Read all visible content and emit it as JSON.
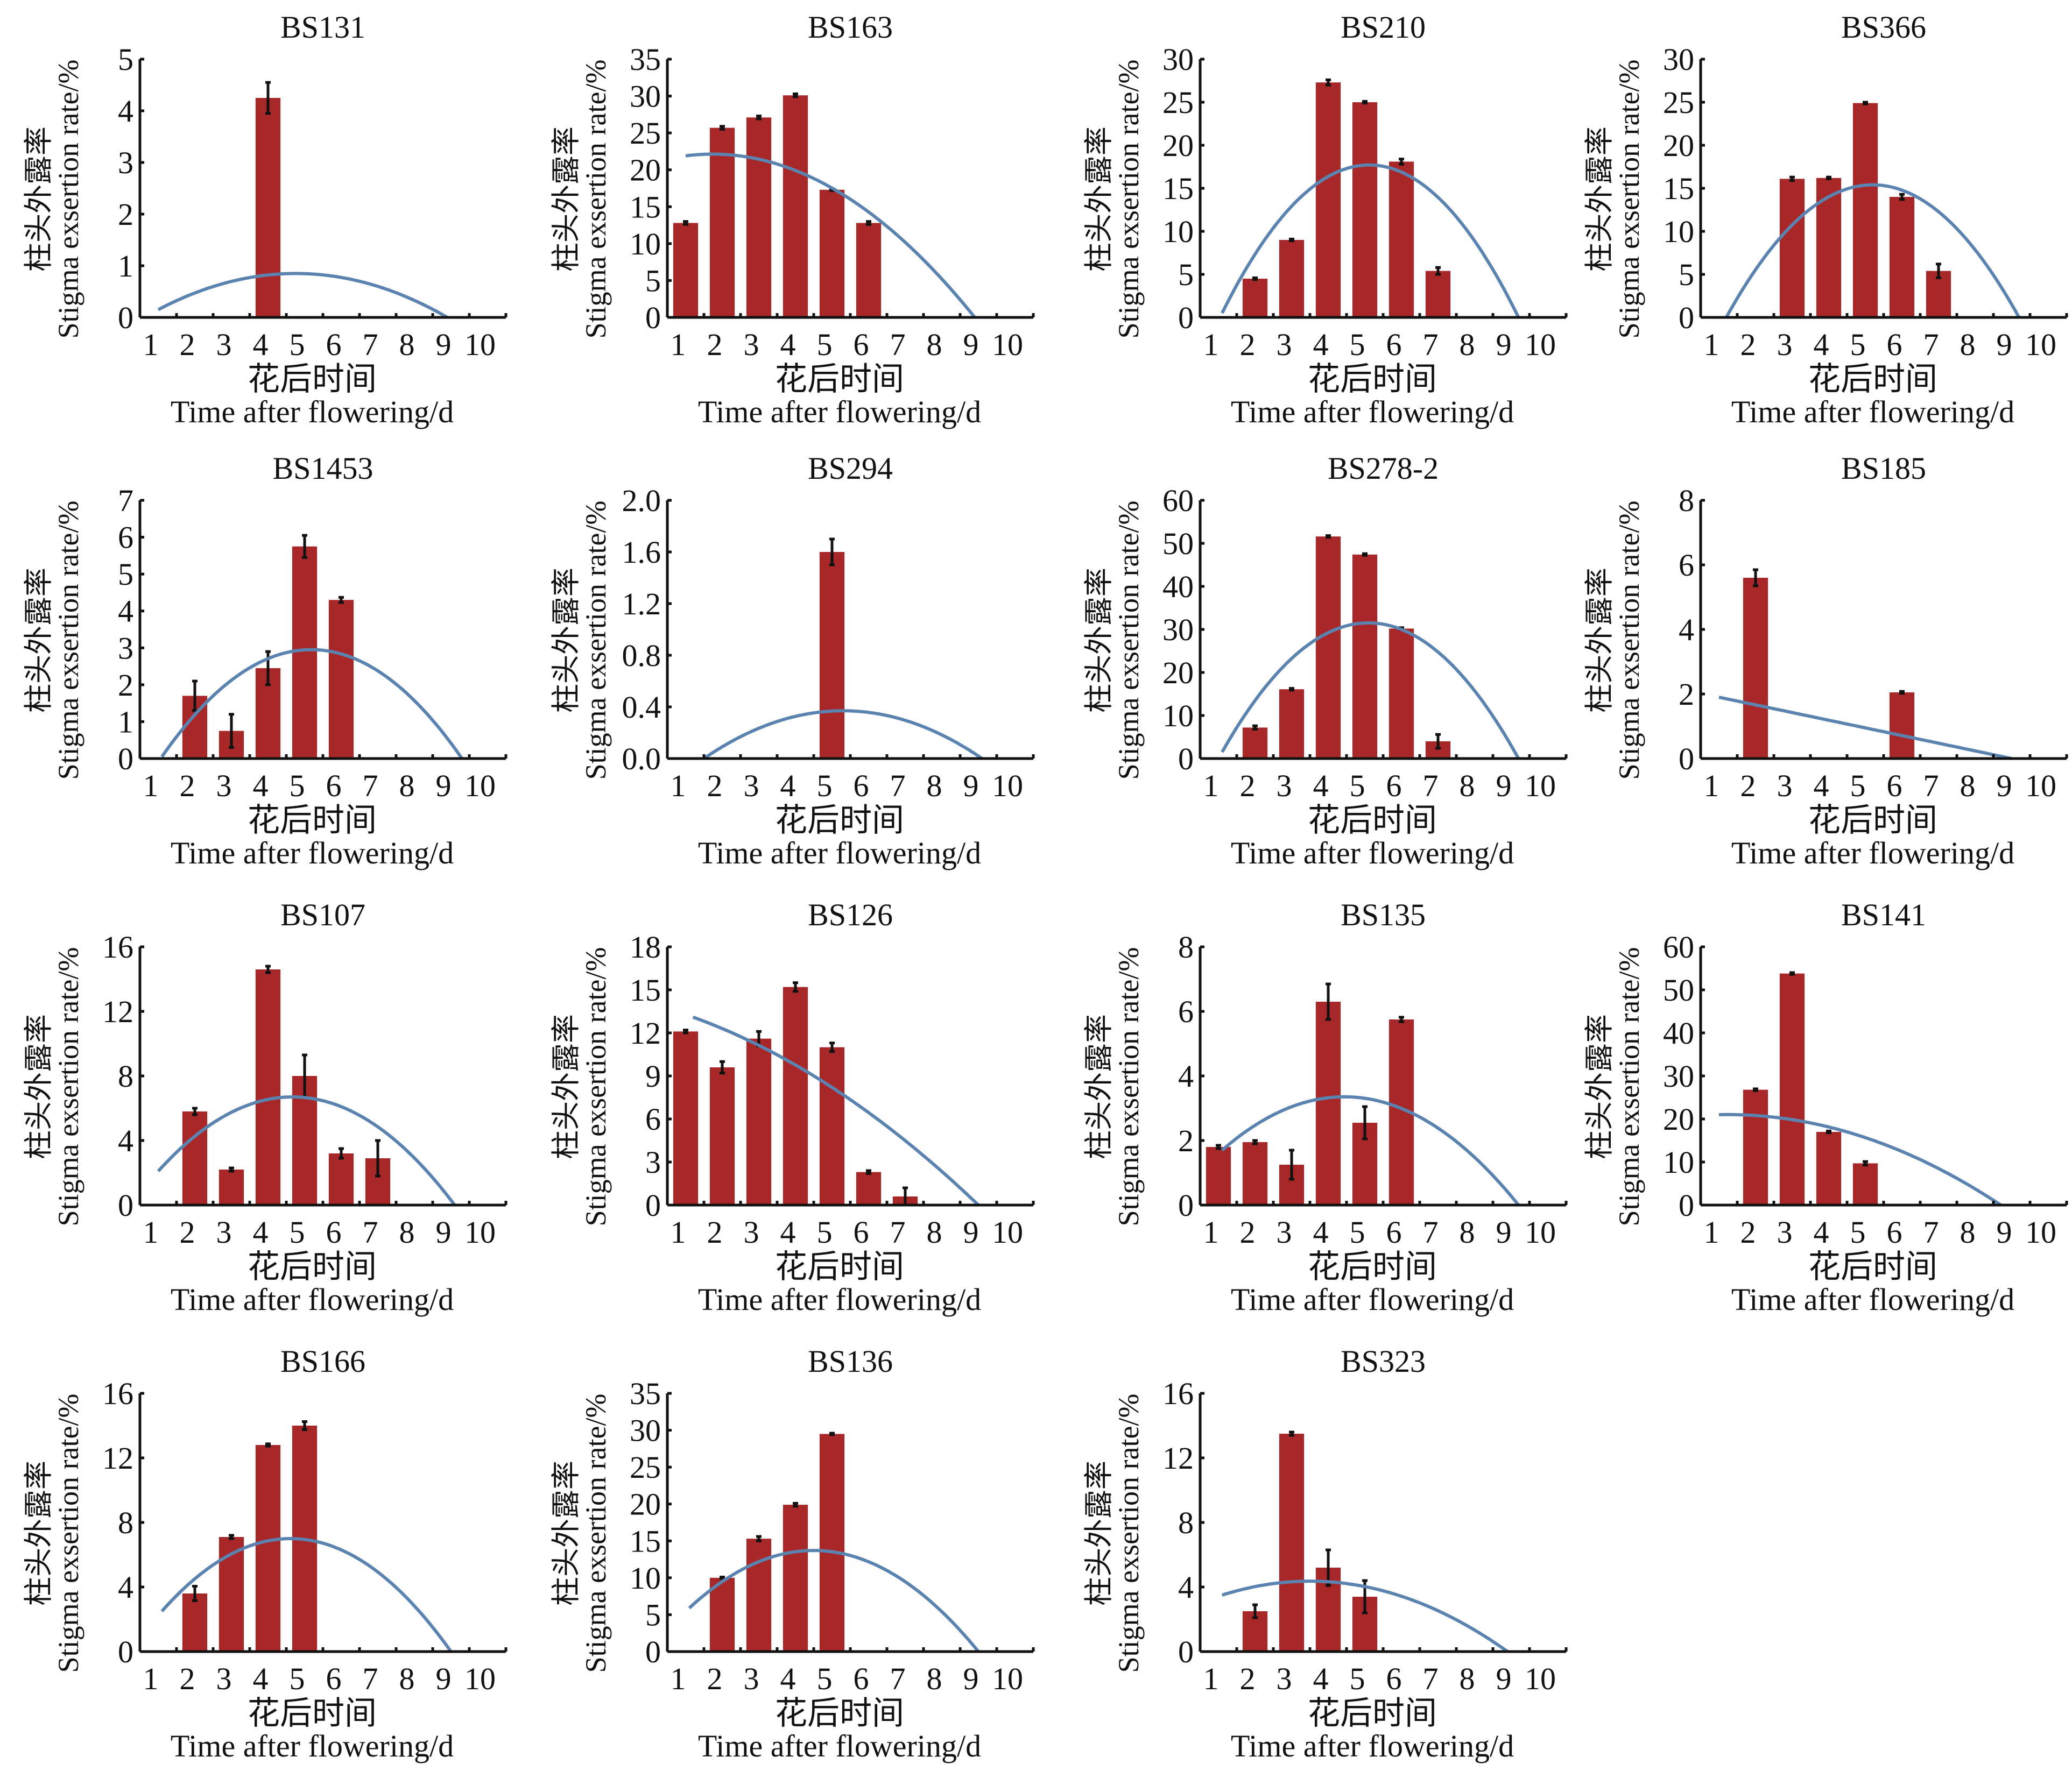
{
  "colors": {
    "bar": "#a8282a",
    "curve": "#5b83b0",
    "axis": "#111111",
    "error": "#111111"
  },
  "chart_data": [
    {
      "type": "bar",
      "title": "BS131",
      "ylim": [
        0,
        5
      ],
      "yticks": [
        "0",
        "1",
        "2",
        "3",
        "4",
        "5"
      ],
      "yvals": [
        0,
        1,
        2,
        3,
        4,
        5
      ],
      "categories": [
        "1",
        "2",
        "3",
        "4",
        "5",
        "6",
        "7",
        "8",
        "9",
        "10"
      ],
      "values": [
        0,
        0,
        0,
        4.25,
        0,
        0,
        0,
        0,
        0,
        0
      ],
      "errors": [
        0,
        0,
        0,
        0.3,
        0,
        0,
        0,
        0,
        0,
        0
      ],
      "fit": {
        "type": "quadratic",
        "points": [
          [
            1,
            0.15
          ],
          [
            4.7,
            0.85
          ],
          [
            8.9,
            0
          ]
        ]
      },
      "xlabel_cn": "花后时间",
      "xlabel": "Time after flowering/d",
      "ylabel_cn": "柱头外露率",
      "ylabel": "Stigma exsertion rate/%"
    },
    {
      "type": "bar",
      "title": "BS163",
      "ylim": [
        0,
        35
      ],
      "yticks": [
        "0",
        "5",
        "10",
        "15",
        "20",
        "25",
        "30",
        "35"
      ],
      "yvals": [
        0,
        5,
        10,
        15,
        20,
        25,
        30,
        35
      ],
      "categories": [
        "1",
        "2",
        "3",
        "4",
        "5",
        "6",
        "7",
        "8",
        "9",
        "10"
      ],
      "values": [
        12.8,
        25.7,
        27.1,
        30.1,
        17.3,
        12.8,
        0,
        0,
        0,
        0
      ],
      "errors": [
        0.2,
        0.2,
        0.2,
        0.2,
        0.1,
        0.2,
        0,
        0,
        0,
        0
      ],
      "fit": {
        "type": "quadratic",
        "points": [
          [
            1,
            21.9
          ],
          [
            2,
            22.1
          ],
          [
            8.9,
            0
          ]
        ]
      },
      "xlabel_cn": "花后时间",
      "xlabel": "Time after flowering/d",
      "ylabel_cn": "柱头外露率",
      "ylabel": "Stigma exsertion rate/%"
    },
    {
      "type": "bar",
      "title": "BS210",
      "ylim": [
        0,
        30
      ],
      "yticks": [
        "0",
        "5",
        "10",
        "15",
        "20",
        "25",
        "30"
      ],
      "yvals": [
        0,
        5,
        10,
        15,
        20,
        25,
        30
      ],
      "categories": [
        "1",
        "2",
        "3",
        "4",
        "5",
        "6",
        "7",
        "8",
        "9",
        "10"
      ],
      "values": [
        0,
        4.5,
        9.0,
        27.3,
        25.0,
        18.1,
        5.4,
        0,
        0,
        0
      ],
      "errors": [
        0,
        0.1,
        0.1,
        0.3,
        0.1,
        0.3,
        0.4,
        0,
        0,
        0
      ],
      "fit": {
        "type": "quadratic",
        "points": [
          [
            1.1,
            0.5
          ],
          [
            5.2,
            17.7
          ],
          [
            9.2,
            0
          ]
        ]
      },
      "xlabel_cn": "花后时间",
      "xlabel": "Time after flowering/d",
      "ylabel_cn": "柱头外露率",
      "ylabel": "Stigma exsertion rate/%"
    },
    {
      "type": "bar",
      "title": "BS366",
      "ylim": [
        0,
        30
      ],
      "yticks": [
        "0",
        "5",
        "10",
        "15",
        "20",
        "25",
        "30"
      ],
      "yvals": [
        0,
        5,
        10,
        15,
        20,
        25,
        30
      ],
      "categories": [
        "1",
        "2",
        "3",
        "4",
        "5",
        "6",
        "7",
        "8",
        "9",
        "10"
      ],
      "values": [
        0,
        0,
        16.1,
        16.2,
        24.9,
        14.0,
        5.4,
        0,
        0,
        0
      ],
      "errors": [
        0,
        0,
        0.2,
        0.1,
        0.1,
        0.3,
        0.8,
        0,
        0,
        0
      ],
      "fit": {
        "type": "quadratic",
        "points": [
          [
            1.2,
            0
          ],
          [
            5.2,
            15.4
          ],
          [
            9.2,
            0
          ]
        ]
      },
      "xlabel_cn": "花后时间",
      "xlabel": "Time after flowering/d",
      "ylabel_cn": "柱头外露率",
      "ylabel": "Stigma exsertion rate/%"
    },
    {
      "type": "bar",
      "title": "BS1453",
      "ylim": [
        0,
        7
      ],
      "yticks": [
        "0",
        "1",
        "2",
        "3",
        "4",
        "5",
        "6",
        "7"
      ],
      "yvals": [
        0,
        1,
        2,
        3,
        4,
        5,
        6,
        7
      ],
      "categories": [
        "1",
        "2",
        "3",
        "4",
        "5",
        "6",
        "7",
        "8",
        "9",
        "10"
      ],
      "values": [
        0,
        1.7,
        0.75,
        2.45,
        5.75,
        4.3,
        0,
        0,
        0,
        0
      ],
      "errors": [
        0,
        0.4,
        0.45,
        0.45,
        0.3,
        0.07,
        0,
        0,
        0,
        0
      ],
      "fit": {
        "type": "quadratic",
        "points": [
          [
            1.1,
            0.05
          ],
          [
            5.3,
            2.95
          ],
          [
            9.3,
            0
          ]
        ]
      },
      "xlabel_cn": "花后时间",
      "xlabel": "Time after flowering/d",
      "ylabel_cn": "柱头外露率",
      "ylabel": "Stigma exsertion rate/%"
    },
    {
      "type": "bar",
      "title": "BS294",
      "ylim": [
        0,
        2.0
      ],
      "yticks": [
        "0.0",
        "0.4",
        "0.8",
        "1.2",
        "1.6",
        "2.0"
      ],
      "yvals": [
        0,
        0.4,
        0.8,
        1.2,
        1.6,
        2.0
      ],
      "categories": [
        "1",
        "2",
        "3",
        "4",
        "5",
        "6",
        "7",
        "8",
        "9",
        "10"
      ],
      "values": [
        0,
        0,
        0,
        0,
        1.6,
        0,
        0,
        0,
        0,
        0
      ],
      "errors": [
        0,
        0,
        0,
        0,
        0.1,
        0,
        0,
        0,
        0,
        0
      ],
      "fit": {
        "type": "quadratic",
        "points": [
          [
            1.5,
            0
          ],
          [
            5.3,
            0.37
          ],
          [
            9.1,
            0
          ]
        ]
      },
      "xlabel_cn": "花后时间",
      "xlabel": "Time after flowering/d",
      "ylabel_cn": "柱头外露率",
      "ylabel": "Stigma exsertion rate/%"
    },
    {
      "type": "bar",
      "title": "BS278-2",
      "ylim": [
        0,
        60
      ],
      "yticks": [
        "0",
        "10",
        "20",
        "30",
        "40",
        "50",
        "60"
      ],
      "yvals": [
        0,
        10,
        20,
        30,
        40,
        50,
        60
      ],
      "categories": [
        "1",
        "2",
        "3",
        "4",
        "5",
        "6",
        "7",
        "8",
        "9",
        "10"
      ],
      "values": [
        0,
        7.2,
        16.1,
        51.6,
        47.4,
        30.2,
        4.0,
        0,
        0,
        0
      ],
      "errors": [
        0,
        0.4,
        0.2,
        0.2,
        0.2,
        0.2,
        1.6,
        0,
        0,
        0
      ],
      "fit": {
        "type": "quadratic",
        "points": [
          [
            1.1,
            1.5
          ],
          [
            5.2,
            31.5
          ],
          [
            9.2,
            0
          ]
        ]
      },
      "xlabel_cn": "花后时间",
      "xlabel": "Time after flowering/d",
      "ylabel_cn": "柱头外露率",
      "ylabel": "Stigma exsertion rate/%"
    },
    {
      "type": "bar",
      "title": "BS185",
      "ylim": [
        0,
        8
      ],
      "yticks": [
        "0",
        "2",
        "4",
        "6",
        "8"
      ],
      "yvals": [
        0,
        2,
        4,
        6,
        8
      ],
      "categories": [
        "1",
        "2",
        "3",
        "4",
        "5",
        "6",
        "7",
        "8",
        "9",
        "10"
      ],
      "values": [
        0,
        5.6,
        0,
        0,
        0,
        2.05,
        0,
        0,
        0,
        0
      ],
      "errors": [
        0,
        0.25,
        0,
        0,
        0,
        0.03,
        0,
        0,
        0,
        0
      ],
      "fit": {
        "type": "quadratic",
        "points": [
          [
            1,
            1.9
          ],
          [
            5,
            0.95
          ],
          [
            9,
            0
          ]
        ]
      },
      "xlabel_cn": "花后时间",
      "xlabel": "Time after flowering/d",
      "ylabel_cn": "柱头外露率",
      "ylabel": "Stigma exsertion rate/%"
    },
    {
      "type": "bar",
      "title": "BS107",
      "ylim": [
        0,
        16
      ],
      "yticks": [
        "0",
        "4",
        "8",
        "12",
        "16"
      ],
      "yvals": [
        0,
        4,
        8,
        12,
        16
      ],
      "categories": [
        "1",
        "2",
        "3",
        "4",
        "5",
        "6",
        "7",
        "8",
        "9",
        "10"
      ],
      "values": [
        0,
        5.8,
        2.2,
        14.6,
        8.0,
        3.2,
        2.9,
        0,
        0,
        0
      ],
      "errors": [
        0,
        0.2,
        0.1,
        0.2,
        1.3,
        0.3,
        1.1,
        0,
        0,
        0
      ],
      "fit": {
        "type": "quadratic",
        "points": [
          [
            1,
            2.1
          ],
          [
            4.7,
            6.7
          ],
          [
            9.1,
            0
          ]
        ]
      },
      "xlabel_cn": "花后时间",
      "xlabel": "Time after flowering/d",
      "ylabel_cn": "柱头外露率",
      "ylabel": "Stigma exsertion rate/%"
    },
    {
      "type": "bar",
      "title": "BS126",
      "ylim": [
        0,
        18
      ],
      "yticks": [
        "0",
        "3",
        "6",
        "9",
        "12",
        "15",
        "18"
      ],
      "yvals": [
        0,
        3,
        6,
        9,
        12,
        15,
        18
      ],
      "categories": [
        "1",
        "2",
        "3",
        "4",
        "5",
        "6",
        "7",
        "8",
        "9",
        "10"
      ],
      "values": [
        12.1,
        9.6,
        11.6,
        15.2,
        11.0,
        2.3,
        0.6,
        0,
        0,
        0
      ],
      "errors": [
        0.1,
        0.4,
        0.5,
        0.3,
        0.3,
        0.1,
        0.6,
        0,
        0,
        0
      ],
      "fit": {
        "type": "quadratic",
        "points": [
          [
            1.2,
            13.1
          ],
          [
            5,
            8.2
          ],
          [
            9,
            0
          ]
        ]
      },
      "xlabel_cn": "花后时间",
      "xlabel": "Time after flowering/d",
      "ylabel_cn": "柱头外露率",
      "ylabel": "Stigma exsertion rate/%"
    },
    {
      "type": "bar",
      "title": "BS135",
      "ylim": [
        0,
        8
      ],
      "yticks": [
        "0",
        "2",
        "4",
        "6",
        "8"
      ],
      "yvals": [
        0,
        2,
        4,
        6,
        8
      ],
      "categories": [
        "1",
        "2",
        "3",
        "4",
        "5",
        "6",
        "7",
        "8",
        "9",
        "10"
      ],
      "values": [
        1.8,
        1.95,
        1.25,
        6.3,
        2.55,
        5.75,
        0,
        0,
        0,
        0
      ],
      "errors": [
        0.05,
        0.05,
        0.45,
        0.55,
        0.5,
        0.07,
        0,
        0,
        0,
        0
      ],
      "fit": {
        "type": "quadratic",
        "points": [
          [
            1.1,
            1.7
          ],
          [
            4.6,
            3.35
          ],
          [
            9.2,
            0
          ]
        ]
      },
      "xlabel_cn": "花后时间",
      "xlabel": "Time after flowering/d",
      "ylabel_cn": "柱头外露率",
      "ylabel": "Stigma exsertion rate/%"
    },
    {
      "type": "bar",
      "title": "BS141",
      "ylim": [
        0,
        60
      ],
      "yticks": [
        "0",
        "10",
        "20",
        "30",
        "40",
        "50",
        "60"
      ],
      "yvals": [
        0,
        10,
        20,
        30,
        40,
        50,
        60
      ],
      "categories": [
        "1",
        "2",
        "3",
        "4",
        "5",
        "6",
        "7",
        "8",
        "9",
        "10"
      ],
      "values": [
        0,
        26.8,
        53.8,
        17.0,
        9.7,
        0,
        0,
        0,
        0,
        0
      ],
      "errors": [
        0,
        0.2,
        0.2,
        0.2,
        0.4,
        0,
        0,
        0,
        0,
        0
      ],
      "fit": {
        "type": "quadratic",
        "points": [
          [
            1,
            21
          ],
          [
            4.5,
            17.0
          ],
          [
            8.7,
            0
          ]
        ]
      },
      "xlabel_cn": "花后时间",
      "xlabel": "Time after flowering/d",
      "ylabel_cn": "柱头外露率",
      "ylabel": "Stigma exsertion rate/%"
    },
    {
      "type": "bar",
      "title": "BS166",
      "ylim": [
        0,
        16
      ],
      "yticks": [
        "0",
        "4",
        "8",
        "12",
        "16"
      ],
      "yvals": [
        0,
        4,
        8,
        12,
        16
      ],
      "categories": [
        "1",
        "2",
        "3",
        "4",
        "5",
        "6",
        "7",
        "8",
        "9",
        "10"
      ],
      "values": [
        0,
        3.6,
        7.1,
        12.8,
        14.0,
        0,
        0,
        0,
        0,
        0
      ],
      "errors": [
        0,
        0.45,
        0.1,
        0.07,
        0.25,
        0,
        0,
        0,
        0,
        0
      ],
      "fit": {
        "type": "quadratic",
        "points": [
          [
            1.1,
            2.5
          ],
          [
            4.6,
            7.0
          ],
          [
            9.0,
            0
          ]
        ]
      },
      "xlabel_cn": "花后时间",
      "xlabel": "Time after flowering/d",
      "ylabel_cn": "柱头外露率",
      "ylabel": "Stigma exsertion rate/%"
    },
    {
      "type": "bar",
      "title": "BS136",
      "ylim": [
        0,
        35
      ],
      "yticks": [
        "0",
        "5",
        "10",
        "15",
        "20",
        "25",
        "30",
        "35"
      ],
      "yvals": [
        0,
        5,
        10,
        15,
        20,
        25,
        30,
        35
      ],
      "categories": [
        "1",
        "2",
        "3",
        "4",
        "5",
        "6",
        "7",
        "8",
        "9",
        "10"
      ],
      "values": [
        0,
        10.0,
        15.3,
        19.9,
        29.5,
        0,
        0,
        0,
        0,
        0
      ],
      "errors": [
        0,
        0.1,
        0.3,
        0.2,
        0.1,
        0,
        0,
        0,
        0,
        0
      ],
      "fit": {
        "type": "quadratic",
        "points": [
          [
            1.1,
            5.9
          ],
          [
            4.5,
            13.7
          ],
          [
            9.0,
            0
          ]
        ]
      },
      "xlabel_cn": "花后时间",
      "xlabel": "Time after flowering/d",
      "ylabel_cn": "柱头外露率",
      "ylabel": "Stigma exsertion rate/%"
    },
    {
      "type": "bar",
      "title": "BS323",
      "ylim": [
        0,
        16
      ],
      "yticks": [
        "0",
        "4",
        "8",
        "12",
        "16"
      ],
      "yvals": [
        0,
        4,
        8,
        12,
        16
      ],
      "categories": [
        "1",
        "2",
        "3",
        "4",
        "5",
        "6",
        "7",
        "8",
        "9",
        "10"
      ],
      "values": [
        0,
        2.5,
        13.5,
        5.2,
        3.4,
        0,
        0,
        0,
        0,
        0
      ],
      "errors": [
        0,
        0.4,
        0.1,
        1.1,
        1.0,
        0,
        0,
        0,
        0,
        0
      ],
      "fit": {
        "type": "quadratic",
        "points": [
          [
            1.1,
            3.5
          ],
          [
            3.8,
            4.35
          ],
          [
            8.9,
            0
          ]
        ]
      },
      "xlabel_cn": "花后时间",
      "xlabel": "Time after flowering/d",
      "ylabel_cn": "柱头外露率",
      "ylabel": "Stigma exsertion rate/%"
    }
  ]
}
